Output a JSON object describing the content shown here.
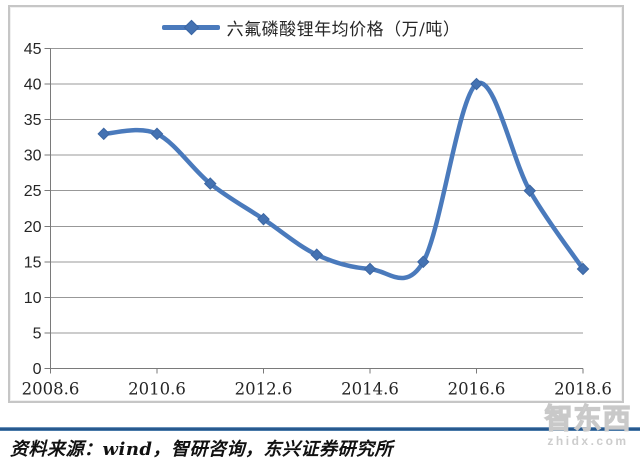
{
  "chart_data": {
    "type": "line",
    "title": "六氟磷酸锂年均价格（万/吨）",
    "x": [
      2009.6,
      2010.6,
      2011.6,
      2012.6,
      2013.6,
      2014.6,
      2015.6,
      2016.6,
      2017.6,
      2018.6
    ],
    "series": [
      {
        "name": "六氟磷酸锂年均价格（万/吨）",
        "values": [
          33,
          33,
          26,
          21,
          16,
          14,
          15,
          40,
          25,
          14
        ],
        "marker": "diamond",
        "smoothed": true
      }
    ],
    "xlabel": "",
    "ylabel": "",
    "xlim": [
      2008.6,
      2018.6
    ],
    "ylim": [
      0,
      45
    ],
    "x_ticks": [
      {
        "value": 2008.6,
        "label": "2008.6"
      },
      {
        "value": 2010.6,
        "label": "2010.6"
      },
      {
        "value": 2012.6,
        "label": "2012.6"
      },
      {
        "value": 2014.6,
        "label": "2014.6"
      },
      {
        "value": 2016.6,
        "label": "2016.6"
      },
      {
        "value": 2018.6,
        "label": "2018.6"
      }
    ],
    "y_ticks": [
      0,
      5,
      10,
      15,
      20,
      25,
      30,
      35,
      40,
      45
    ],
    "grid": "horizontal",
    "legend_position": "top"
  },
  "colors": {
    "line": "#4a7abc",
    "marker_fill": "#4472b2",
    "marker_stroke": "#3c66a2",
    "grid": "#989898",
    "axis": "#7a7a7a",
    "tick_label": "#262626",
    "divider_blue": "#24568c",
    "figure_border": "#c6c6c6"
  },
  "footer": {
    "source_text": "资料来源：wind，智研咨询，东兴证券研究所"
  },
  "watermark": {
    "logo_text": "智东西",
    "url": "zhidx.com"
  }
}
